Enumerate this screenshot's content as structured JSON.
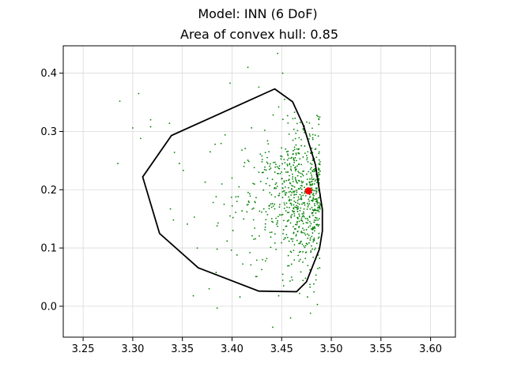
{
  "chart_data": {
    "type": "scatter",
    "title": "Model: INN (6 DoF)",
    "subtitle": "Area of convex hull: 0.85",
    "xlabel": "",
    "ylabel": "",
    "xlim": [
      3.23,
      3.625
    ],
    "ylim": [
      -0.053,
      0.447
    ],
    "x_ticks": [
      3.25,
      3.3,
      3.35,
      3.4,
      3.45,
      3.5,
      3.55,
      3.6
    ],
    "x_tick_labels": [
      "3.25",
      "3.30",
      "3.35",
      "3.40",
      "3.45",
      "3.50",
      "3.55",
      "3.60"
    ],
    "y_ticks": [
      0.0,
      0.1,
      0.2,
      0.3,
      0.4
    ],
    "y_tick_labels": [
      "0.0",
      "0.1",
      "0.2",
      "0.3",
      "0.4"
    ],
    "grid": true,
    "colors": {
      "samples": "#008000",
      "hull": "#000000",
      "center": "#ff0000",
      "grid": "#d9d9d9"
    },
    "hull": [
      [
        3.443,
        0.373
      ],
      [
        3.461,
        0.351
      ],
      [
        3.472,
        0.31
      ],
      [
        3.484,
        0.243
      ],
      [
        3.491,
        0.166
      ],
      [
        3.491,
        0.129
      ],
      [
        3.488,
        0.098
      ],
      [
        3.475,
        0.042
      ],
      [
        3.465,
        0.025
      ],
      [
        3.427,
        0.026
      ],
      [
        3.366,
        0.066
      ],
      [
        3.327,
        0.125
      ],
      [
        3.31,
        0.222
      ],
      [
        3.339,
        0.293
      ]
    ],
    "center": [
      3.477,
      0.198
    ],
    "outliers": [
      [
        3.446,
        0.434
      ],
      [
        3.416,
        0.41
      ],
      [
        3.451,
        0.4
      ],
      [
        3.398,
        0.383
      ],
      [
        3.427,
        0.376
      ],
      [
        3.287,
        0.352
      ],
      [
        3.306,
        0.365
      ],
      [
        3.318,
        0.32
      ],
      [
        3.3,
        0.306
      ],
      [
        3.318,
        0.308
      ],
      [
        3.337,
        0.314
      ],
      [
        3.308,
        0.288
      ],
      [
        3.285,
        0.245
      ],
      [
        3.342,
        0.264
      ],
      [
        3.347,
        0.245
      ],
      [
        3.351,
        0.233
      ],
      [
        3.383,
        0.278
      ],
      [
        3.393,
        0.294
      ],
      [
        3.378,
        0.265
      ],
      [
        3.373,
        0.213
      ],
      [
        3.384,
        0.188
      ],
      [
        3.381,
        0.178
      ],
      [
        3.338,
        0.167
      ],
      [
        3.341,
        0.148
      ],
      [
        3.355,
        0.141
      ],
      [
        3.362,
        0.153
      ],
      [
        3.386,
        0.143
      ],
      [
        3.385,
        0.138
      ],
      [
        3.385,
        0.098
      ],
      [
        3.365,
        0.1
      ],
      [
        3.361,
        0.018
      ],
      [
        3.377,
        0.03
      ],
      [
        3.384,
        0.058
      ],
      [
        3.385,
        -0.003
      ],
      [
        3.401,
        0.13
      ],
      [
        3.405,
        0.088
      ],
      [
        3.419,
        0.071
      ],
      [
        3.425,
        0.051
      ],
      [
        3.408,
        0.016
      ],
      [
        3.424,
        0.051
      ],
      [
        3.447,
        0.018
      ],
      [
        3.452,
        0.035
      ],
      [
        3.46,
        0.05
      ],
      [
        3.474,
        0.048
      ],
      [
        3.468,
        0.022
      ],
      [
        3.441,
        -0.036
      ],
      [
        3.459,
        -0.02
      ],
      [
        3.479,
        -0.012
      ],
      [
        3.486,
        0.003
      ],
      [
        3.476,
        0.016
      ],
      [
        3.4,
        0.22
      ],
      [
        3.407,
        0.205
      ],
      [
        3.398,
        0.155
      ],
      [
        3.395,
        0.112
      ],
      [
        3.415,
        0.162
      ],
      [
        3.422,
        0.115
      ],
      [
        3.418,
        0.092
      ],
      [
        3.435,
        0.082
      ],
      [
        3.43,
        0.063
      ],
      [
        3.412,
        0.24
      ],
      [
        3.41,
        0.268
      ],
      [
        3.427,
        0.23
      ],
      [
        3.436,
        0.245
      ],
      [
        3.433,
        0.302
      ],
      [
        3.447,
        0.342
      ],
      [
        3.453,
        0.355
      ],
      [
        3.456,
        0.327
      ],
      [
        3.463,
        0.333
      ],
      [
        3.392,
        0.175
      ]
    ],
    "cluster": {
      "count": 700,
      "x_mean": 3.471,
      "x_spread": 0.017,
      "x_max": 3.489,
      "y_mean": 0.185,
      "y_spread": 0.058
    }
  }
}
